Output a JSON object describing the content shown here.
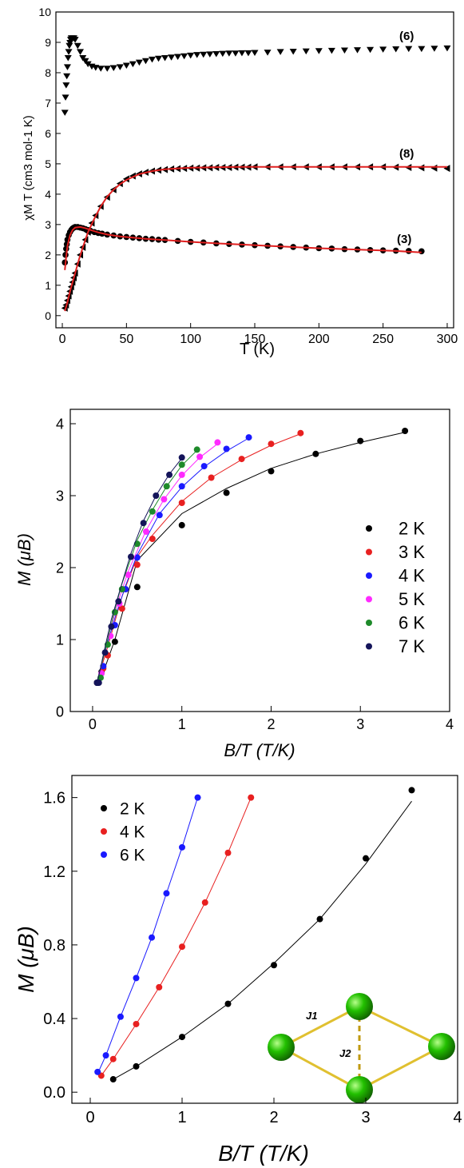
{
  "chart_data": [
    {
      "type": "scatter",
      "title": "",
      "xlabel": "T (K)",
      "ylabel": "χM T (cm3 mol-1 K)",
      "xlim": [
        -5,
        305
      ],
      "ylim": [
        -0.4,
        10
      ],
      "xticks": [
        0,
        50,
        100,
        150,
        200,
        250,
        300
      ],
      "yticks": [
        0,
        1,
        2,
        3,
        4,
        5,
        6,
        7,
        8,
        9,
        10
      ],
      "grid": false,
      "series": [
        {
          "name": "(6)",
          "marker": "triangle-down",
          "color": "#000000",
          "x": [
            2,
            2.5,
            3,
            3.5,
            4,
            4.5,
            5,
            5.5,
            6,
            6.5,
            7,
            8,
            9,
            10,
            12,
            14,
            16,
            18,
            20,
            23,
            26,
            30,
            35,
            40,
            45,
            50,
            55,
            60,
            65,
            70,
            75,
            80,
            85,
            90,
            95,
            100,
            105,
            110,
            115,
            120,
            125,
            130,
            135,
            140,
            145,
            150,
            160,
            170,
            180,
            190,
            200,
            210,
            220,
            230,
            240,
            250,
            260,
            270,
            280,
            290,
            300
          ],
          "y": [
            6.7,
            7.2,
            7.6,
            7.9,
            8.2,
            8.5,
            8.7,
            8.9,
            9.0,
            9.1,
            9.15,
            9.15,
            9.15,
            9.1,
            8.9,
            8.7,
            8.5,
            8.4,
            8.3,
            8.22,
            8.18,
            8.15,
            8.15,
            8.17,
            8.2,
            8.25,
            8.3,
            8.35,
            8.4,
            8.45,
            8.48,
            8.5,
            8.52,
            8.54,
            8.56,
            8.58,
            8.6,
            8.61,
            8.62,
            8.63,
            8.64,
            8.65,
            8.65,
            8.66,
            8.66,
            8.67,
            8.68,
            8.7,
            8.71,
            8.72,
            8.73,
            8.74,
            8.75,
            8.76,
            8.77,
            8.78,
            8.79,
            8.8,
            8.8,
            8.81,
            8.82
          ]
        },
        {
          "name": "(8)",
          "marker": "triangle-left",
          "color": "#000000",
          "x": [
            2,
            3,
            4,
            5,
            6,
            7,
            8,
            9,
            10,
            12,
            14,
            16,
            18,
            20,
            23,
            26,
            30,
            35,
            40,
            45,
            50,
            55,
            60,
            65,
            70,
            75,
            80,
            85,
            90,
            95,
            100,
            105,
            110,
            115,
            120,
            125,
            130,
            135,
            140,
            145,
            150,
            160,
            170,
            180,
            190,
            200,
            210,
            220,
            230,
            240,
            250,
            260,
            270,
            280,
            290,
            300
          ],
          "y": [
            0.25,
            0.35,
            0.5,
            0.65,
            0.8,
            0.95,
            1.1,
            1.25,
            1.4,
            1.7,
            2.0,
            2.25,
            2.5,
            2.75,
            3.05,
            3.3,
            3.6,
            3.9,
            4.15,
            4.35,
            4.5,
            4.6,
            4.67,
            4.72,
            4.76,
            4.79,
            4.81,
            4.83,
            4.84,
            4.85,
            4.86,
            4.86,
            4.87,
            4.87,
            4.88,
            4.88,
            4.88,
            4.89,
            4.89,
            4.89,
            4.9,
            4.9,
            4.9,
            4.9,
            4.9,
            4.9,
            4.9,
            4.9,
            4.9,
            4.9,
            4.9,
            4.89,
            4.88,
            4.87,
            4.86,
            4.85
          ]
        },
        {
          "name": "(3)",
          "marker": "circle",
          "color": "#000000",
          "x": [
            2,
            2.5,
            3,
            3.5,
            4,
            5,
            6,
            7,
            8,
            9,
            10,
            12,
            14,
            16,
            18,
            20,
            22,
            25,
            28,
            31,
            35,
            40,
            45,
            50,
            55,
            60,
            65,
            70,
            75,
            80,
            90,
            100,
            110,
            120,
            130,
            140,
            150,
            160,
            170,
            180,
            190,
            200,
            210,
            220,
            230,
            240,
            250,
            260,
            270,
            280
          ],
          "y": [
            1.75,
            2.0,
            2.2,
            2.35,
            2.5,
            2.65,
            2.75,
            2.82,
            2.87,
            2.9,
            2.92,
            2.92,
            2.9,
            2.88,
            2.85,
            2.82,
            2.79,
            2.75,
            2.72,
            2.7,
            2.67,
            2.64,
            2.61,
            2.59,
            2.57,
            2.55,
            2.53,
            2.52,
            2.5,
            2.49,
            2.46,
            2.43,
            2.41,
            2.38,
            2.36,
            2.34,
            2.32,
            2.3,
            2.28,
            2.26,
            2.24,
            2.22,
            2.21,
            2.19,
            2.18,
            2.16,
            2.15,
            2.14,
            2.13,
            2.12
          ]
        }
      ],
      "fits": [
        {
          "color": "#e02020",
          "x": [
            2,
            3,
            4,
            6,
            8,
            10,
            13,
            16,
            20,
            25,
            30,
            35,
            40,
            45,
            50,
            60,
            70,
            80,
            90,
            100,
            120,
            140,
            160,
            180,
            200,
            220,
            240,
            260,
            280,
            300
          ],
          "y": [
            0.15,
            0.3,
            0.45,
            0.8,
            1.1,
            1.4,
            1.85,
            2.25,
            2.75,
            3.2,
            3.6,
            3.92,
            4.15,
            4.33,
            4.47,
            4.66,
            4.76,
            4.82,
            4.85,
            4.87,
            4.89,
            4.9,
            4.9,
            4.9,
            4.9,
            4.9,
            4.9,
            4.9,
            4.9,
            4.9
          ]
        },
        {
          "color": "#e02020",
          "x": [
            2,
            3,
            4,
            6,
            8,
            10,
            14,
            18,
            22,
            28,
            35,
            45,
            55,
            65,
            80,
            100,
            120,
            140,
            160,
            180,
            200,
            220,
            240,
            260,
            280
          ],
          "y": [
            1.5,
            1.95,
            2.3,
            2.65,
            2.82,
            2.9,
            2.92,
            2.88,
            2.82,
            2.74,
            2.67,
            2.61,
            2.57,
            2.53,
            2.49,
            2.43,
            2.38,
            2.34,
            2.3,
            2.26,
            2.22,
            2.19,
            2.16,
            2.13,
            2.08
          ]
        }
      ]
    },
    {
      "type": "scatter",
      "title": "",
      "xlabel": "B/T (T/K)",
      "ylabel": "M (μB)",
      "xlim": [
        -0.25,
        4
      ],
      "ylim": [
        0,
        4.2
      ],
      "xticks": [
        0,
        1,
        2,
        3,
        4
      ],
      "yticks": [
        0,
        1,
        2,
        3,
        4
      ],
      "grid": false,
      "legend": "bottom-right",
      "series": [
        {
          "name": "2 K",
          "color": "#000000",
          "x": [
            0.05,
            0.1,
            0.25,
            0.5,
            1.0,
            1.5,
            2.0,
            2.5,
            3.0,
            3.5
          ],
          "y": [
            0.4,
            0.55,
            0.97,
            1.73,
            2.59,
            3.04,
            3.34,
            3.58,
            3.76,
            3.9
          ],
          "fit_x": [
            0.05,
            0.15,
            0.25,
            0.5,
            1.0,
            1.5,
            2.0,
            2.5,
            3.0,
            3.5
          ],
          "fit_y": [
            0.42,
            0.65,
            1.0,
            2.1,
            2.75,
            3.1,
            3.38,
            3.58,
            3.74,
            3.88
          ]
        },
        {
          "name": "3 K",
          "color": "#e82020",
          "x": [
            0.05,
            0.12,
            0.17,
            0.33,
            0.5,
            0.67,
            1.0,
            1.33,
            1.67,
            2.0,
            2.33
          ],
          "y": [
            0.4,
            0.6,
            0.78,
            1.43,
            2.04,
            2.4,
            2.9,
            3.25,
            3.51,
            3.72,
            3.87
          ],
          "fit_x": [
            0.05,
            0.12,
            0.17,
            0.33,
            0.5,
            0.67,
            1.0,
            1.33,
            1.67,
            2.0,
            2.33
          ],
          "fit_y": [
            0.42,
            0.7,
            0.9,
            1.6,
            2.15,
            2.45,
            2.92,
            3.25,
            3.5,
            3.7,
            3.86
          ]
        },
        {
          "name": "4 K",
          "color": "#1a1aff",
          "x": [
            0.05,
            0.12,
            0.25,
            0.37,
            0.5,
            0.75,
            1.0,
            1.25,
            1.5,
            1.75
          ],
          "y": [
            0.4,
            0.63,
            1.2,
            1.7,
            2.14,
            2.73,
            3.13,
            3.41,
            3.65,
            3.81
          ],
          "fit_x": [
            0.05,
            0.12,
            0.25,
            0.37,
            0.5,
            0.75,
            1.0,
            1.25,
            1.5,
            1.75
          ],
          "fit_y": [
            0.42,
            0.75,
            1.3,
            1.75,
            2.18,
            2.75,
            3.12,
            3.4,
            3.62,
            3.8
          ]
        },
        {
          "name": "5 K",
          "color": "#ff2aff",
          "x": [
            0.05,
            0.1,
            0.2,
            0.3,
            0.4,
            0.6,
            0.8,
            1.0,
            1.2,
            1.4
          ],
          "y": [
            0.4,
            0.53,
            1.05,
            1.5,
            1.9,
            2.5,
            2.95,
            3.29,
            3.54,
            3.74
          ],
          "fit_x": [
            0.05,
            0.1,
            0.2,
            0.3,
            0.4,
            0.6,
            0.8,
            1.0,
            1.2,
            1.4
          ],
          "fit_y": [
            0.42,
            0.65,
            1.15,
            1.58,
            1.95,
            2.52,
            2.95,
            3.28,
            3.53,
            3.72
          ]
        },
        {
          "name": "6 K",
          "color": "#1e8a2a",
          "x": [
            0.05,
            0.09,
            0.17,
            0.25,
            0.33,
            0.5,
            0.67,
            0.83,
            1.0,
            1.17
          ],
          "y": [
            0.4,
            0.47,
            0.93,
            1.38,
            1.7,
            2.33,
            2.78,
            3.13,
            3.43,
            3.64
          ],
          "fit_x": [
            0.05,
            0.09,
            0.17,
            0.25,
            0.33,
            0.5,
            0.67,
            0.83,
            1.0,
            1.17
          ],
          "fit_y": [
            0.42,
            0.6,
            1.0,
            1.42,
            1.78,
            2.38,
            2.8,
            3.13,
            3.42,
            3.63
          ]
        },
        {
          "name": "7 K",
          "color": "#14145a",
          "x": [
            0.05,
            0.07,
            0.14,
            0.21,
            0.29,
            0.43,
            0.57,
            0.71,
            0.86,
            1.0
          ],
          "y": [
            0.4,
            0.4,
            0.82,
            1.18,
            1.53,
            2.15,
            2.62,
            3.0,
            3.29,
            3.53
          ],
          "fit_x": [
            0.05,
            0.07,
            0.14,
            0.21,
            0.29,
            0.43,
            0.57,
            0.71,
            0.86,
            1.0
          ],
          "fit_y": [
            0.4,
            0.5,
            0.9,
            1.28,
            1.62,
            2.2,
            2.65,
            3.0,
            3.3,
            3.52
          ]
        }
      ]
    },
    {
      "type": "scatter",
      "title": "",
      "xlabel": "B/T (T/K)",
      "ylabel": "M (μB)",
      "xlim": [
        -0.2,
        4
      ],
      "ylim": [
        -0.06,
        1.72
      ],
      "xticks": [
        0,
        1,
        2,
        3,
        4
      ],
      "yticks": [
        0.0,
        0.4,
        0.8,
        1.2,
        1.6
      ],
      "ytick_labels": [
        "0.0",
        "0.4",
        "0.8",
        "1.2",
        "1.6"
      ],
      "grid": false,
      "legend": "top-left",
      "series": [
        {
          "name": "2 K",
          "color": "#000000",
          "x": [
            0.25,
            0.5,
            1.0,
            1.5,
            2.0,
            2.5,
            3.0,
            3.5
          ],
          "y": [
            0.07,
            0.14,
            0.3,
            0.48,
            0.69,
            0.94,
            1.27,
            1.64
          ],
          "fit_x": [
            0.25,
            0.5,
            1.0,
            1.5,
            2.0,
            2.5,
            3.0,
            3.5
          ],
          "fit_y": [
            0.07,
            0.14,
            0.3,
            0.48,
            0.7,
            0.94,
            1.24,
            1.58
          ]
        },
        {
          "name": "4 K",
          "color": "#e82020",
          "x": [
            0.12,
            0.25,
            0.5,
            0.75,
            1.0,
            1.25,
            1.5,
            1.75
          ],
          "y": [
            0.09,
            0.18,
            0.37,
            0.57,
            0.79,
            1.03,
            1.3,
            1.6
          ],
          "fit_x": [
            0.12,
            0.25,
            0.5,
            0.75,
            1.0,
            1.25,
            1.5,
            1.75
          ],
          "fit_y": [
            0.09,
            0.18,
            0.37,
            0.57,
            0.79,
            1.03,
            1.3,
            1.6
          ]
        },
        {
          "name": "6 K",
          "color": "#1a1aff",
          "x": [
            0.08,
            0.17,
            0.33,
            0.5,
            0.67,
            0.83,
            1.0,
            1.17
          ],
          "y": [
            0.11,
            0.2,
            0.41,
            0.62,
            0.84,
            1.08,
            1.33,
            1.6
          ],
          "fit_x": [
            0.08,
            0.17,
            0.33,
            0.5,
            0.67,
            0.83,
            1.0,
            1.17
          ],
          "fit_y": [
            0.1,
            0.2,
            0.41,
            0.62,
            0.84,
            1.08,
            1.33,
            1.6
          ]
        }
      ],
      "inset": {
        "labels": [
          "J1",
          "J2"
        ],
        "node_color": "#22c000",
        "bond_color": "#e0c030"
      }
    }
  ]
}
